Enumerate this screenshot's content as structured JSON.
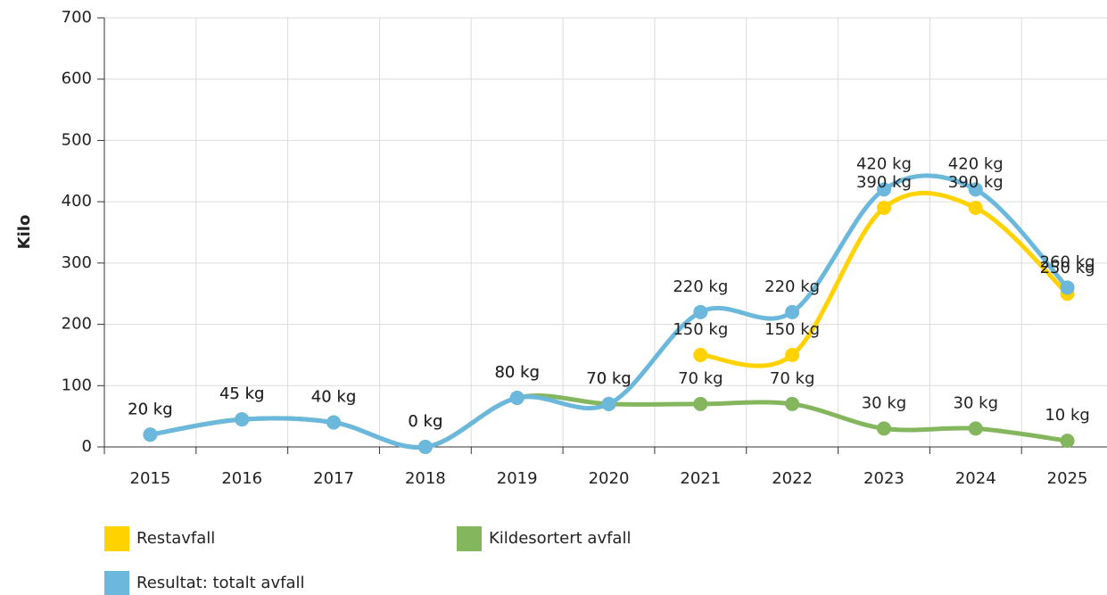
{
  "chart_data": {
    "type": "line",
    "y_label": "Kilo",
    "categories": [
      "2015",
      "2016",
      "2017",
      "2018",
      "2019",
      "2020",
      "2021",
      "2022",
      "2023",
      "2024",
      "2025"
    ],
    "series": [
      {
        "name": "Restavfall",
        "color": "#ffd200",
        "values": [
          null,
          null,
          null,
          null,
          null,
          null,
          150,
          150,
          390,
          390,
          250
        ],
        "value_labels": [
          null,
          null,
          null,
          null,
          null,
          null,
          "150 kg",
          "150 kg",
          "390 kg",
          "390 kg",
          "250 kg"
        ]
      },
      {
        "name": "Kildesortert avfall",
        "color": "#84b65e",
        "values": [
          20,
          45,
          40,
          0,
          80,
          70,
          70,
          70,
          30,
          30,
          10
        ],
        "value_labels": [
          "20 kg",
          "45 kg",
          "40 kg",
          "0 kg",
          "80 kg",
          "70 kg",
          "70 kg",
          "70 kg",
          "30 kg",
          "30 kg",
          "10 kg"
        ]
      },
      {
        "name": "Resultat: totalt avfall",
        "color": "#6bb8dc",
        "values": [
          20,
          45,
          40,
          0,
          80,
          70,
          220,
          220,
          420,
          420,
          260
        ],
        "value_labels": [
          "20 kg",
          "45 kg",
          "40 kg",
          "0 kg",
          "80 kg",
          "70 kg",
          "220 kg",
          "220 kg",
          "420 kg",
          "420 kg",
          "260 kg"
        ]
      }
    ],
    "ylim": [
      0,
      700
    ],
    "yticks": [
      0,
      100,
      200,
      300,
      400,
      500,
      600,
      700
    ],
    "grid": true,
    "legend": "bottom"
  }
}
